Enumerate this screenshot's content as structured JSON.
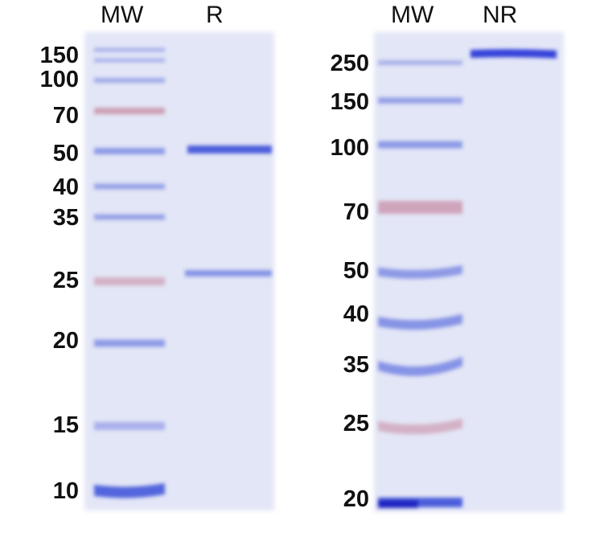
{
  "left_gel": {
    "lane_labels": [
      "MW",
      "R"
    ],
    "markers_kda": [
      "150",
      "100",
      "70",
      "50",
      "40",
      "35",
      "25",
      "20",
      "15",
      "10"
    ]
  },
  "right_gel": {
    "lane_labels": [
      "MW",
      "NR"
    ],
    "markers_kda": [
      "250",
      "150",
      "100",
      "70",
      "50",
      "40",
      "35",
      "25",
      "20"
    ]
  },
  "colors": {
    "band_blue": "#3a4fd8",
    "band_red": "#c0708a",
    "gel_bg": "#e4e7f6"
  }
}
